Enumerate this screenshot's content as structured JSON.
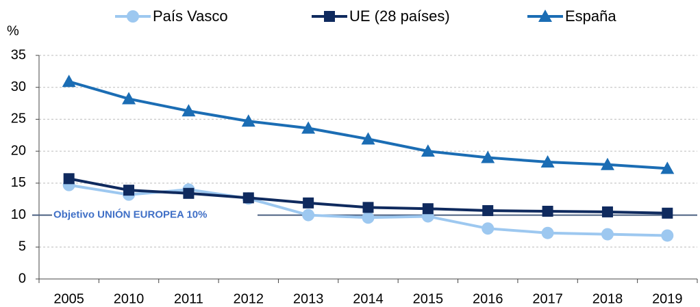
{
  "chart_data": {
    "type": "line",
    "y_label": "%",
    "categories": [
      "2005",
      "2010",
      "2011",
      "2012",
      "2013",
      "2014",
      "2015",
      "2016",
      "2017",
      "2018",
      "2019"
    ],
    "series": [
      {
        "name": "País Vasco",
        "color": "#9dc8f0",
        "marker": "circle",
        "values": [
          14.7,
          13.2,
          14.0,
          12.6,
          10.0,
          9.6,
          9.8,
          7.9,
          7.2,
          7.0,
          6.8
        ]
      },
      {
        "name": "UE (28 países)",
        "color": "#0f2a5e",
        "marker": "square",
        "values": [
          15.7,
          13.9,
          13.4,
          12.7,
          11.9,
          11.2,
          11.0,
          10.7,
          10.6,
          10.5,
          10.3
        ]
      },
      {
        "name": "España",
        "color": "#1b6db4",
        "marker": "triangle",
        "values": [
          30.9,
          28.2,
          26.3,
          24.7,
          23.6,
          21.9,
          20.0,
          19.0,
          18.3,
          17.9,
          17.3
        ]
      }
    ],
    "target": {
      "label": "Objetivo UNIÓN EUROPEA  10%",
      "value": 10,
      "color": "#3f6fc6"
    },
    "ylim": [
      0,
      35
    ],
    "yticks": [
      0,
      5,
      10,
      15,
      20,
      25,
      30,
      35
    ],
    "grid": true
  }
}
